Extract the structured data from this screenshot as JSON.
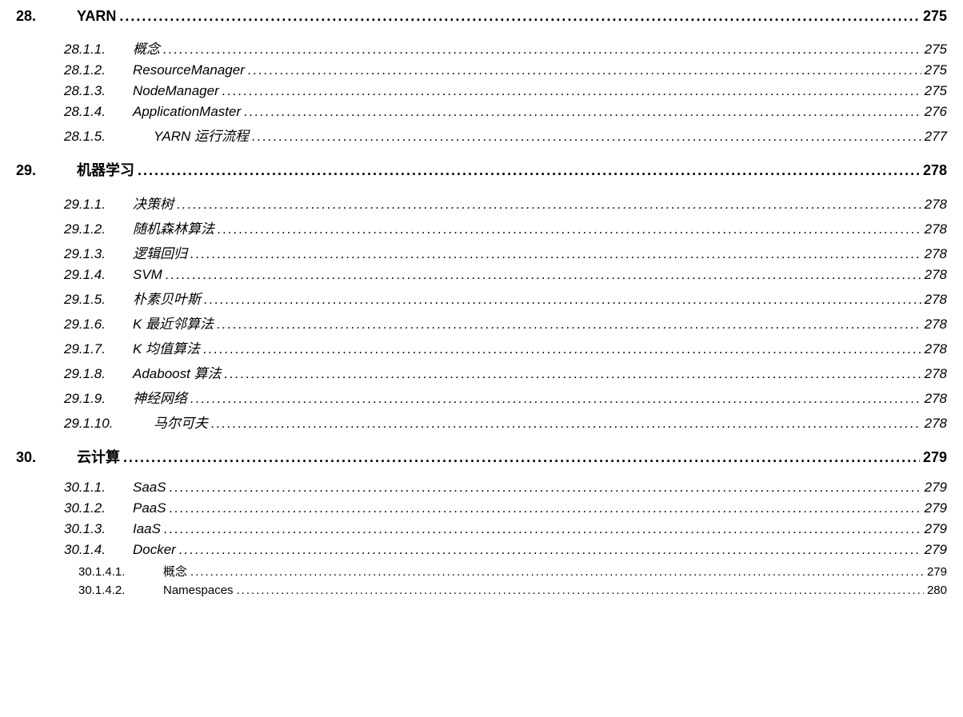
{
  "sections": [
    {
      "number": "28.",
      "title": "YARN",
      "page": "275",
      "level": 1,
      "items": [
        {
          "number": "28.1.1.",
          "title": "概念",
          "page": "275",
          "level": 2
        },
        {
          "number": "28.1.2.",
          "title": "ResourceManager",
          "page": "275",
          "level": 2
        },
        {
          "number": "28.1.3.",
          "title": "NodeManager",
          "page": "275",
          "level": 2
        },
        {
          "number": "28.1.4.",
          "title": "ApplicationMaster",
          "page": "276",
          "level": 2
        },
        {
          "number": "28.1.5.",
          "title": "YARN 运行流程",
          "page": "277",
          "level": 2,
          "extraIndent": true
        }
      ]
    },
    {
      "number": "29.",
      "title": "机器学习",
      "page": "278",
      "level": 1,
      "items": [
        {
          "number": "29.1.1.",
          "title": "决策树",
          "page": "278",
          "level": 2
        },
        {
          "number": "29.1.2.",
          "title": "随机森林算法",
          "page": "278",
          "level": 2
        },
        {
          "number": "29.1.3.",
          "title": "逻辑回归",
          "page": "278",
          "level": 2
        },
        {
          "number": "29.1.4.",
          "title": "SVM",
          "page": "278",
          "level": 2
        },
        {
          "number": "29.1.5.",
          "title": "朴素贝叶斯",
          "page": "278",
          "level": 2
        },
        {
          "number": "29.1.6.",
          "title": "K 最近邻算法",
          "page": "278",
          "level": 2
        },
        {
          "number": "29.1.7.",
          "title": "K 均值算法",
          "page": "278",
          "level": 2
        },
        {
          "number": "29.1.8.",
          "title": "Adaboost 算法",
          "page": "278",
          "level": 2
        },
        {
          "number": "29.1.9.",
          "title": "神经网络",
          "page": "278",
          "level": 2
        },
        {
          "number": "29.1.10.",
          "title": "马尔可夫",
          "page": "278",
          "level": 2,
          "extraIndent": true
        }
      ]
    },
    {
      "number": "30.",
      "title": "云计算",
      "page": "279",
      "level": 1,
      "items": [
        {
          "number": "30.1.1.",
          "title": "SaaS",
          "page": "279",
          "level": 2
        },
        {
          "number": "30.1.2.",
          "title": "PaaS",
          "page": "279",
          "level": 2
        },
        {
          "number": "30.1.3.",
          "title": "IaaS",
          "page": "279",
          "level": 2
        },
        {
          "number": "30.1.4.",
          "title": "Docker",
          "page": "279",
          "level": 2
        },
        {
          "number": "30.1.4.1.",
          "title": "概念",
          "page": "279",
          "level": 3
        },
        {
          "number": "30.1.4.2.",
          "title": "Namespaces",
          "page": "280",
          "level": 3
        }
      ]
    }
  ]
}
